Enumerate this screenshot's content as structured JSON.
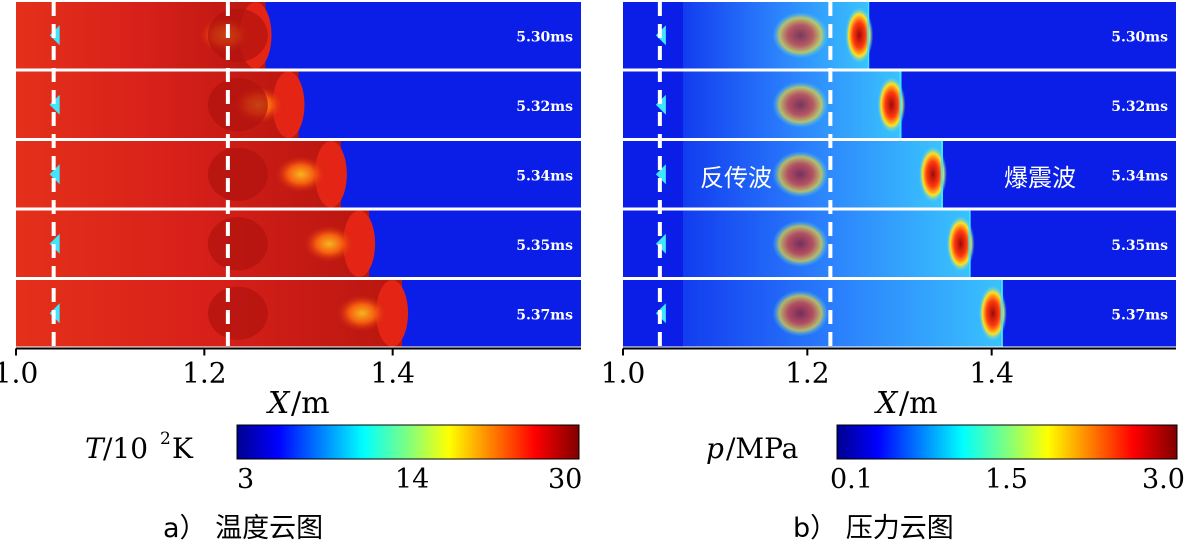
{
  "figure": {
    "colors": {
      "cold": "#0a1ee8",
      "hot_red": "#e42414",
      "dark_red": "#b0120e",
      "cyan": "#3fe6ff",
      "light_blue": "#44aaff",
      "separator": "#ffffff",
      "dash": "#ffffff",
      "text": "#000000"
    },
    "panel_a": {
      "caption": "a） 温度云图",
      "time_labels": [
        "5.30ms",
        "5.32ms",
        "5.34ms",
        "5.35ms",
        "5.37ms"
      ],
      "front_positions_m": [
        1.265,
        1.3,
        1.345,
        1.375,
        1.41
      ],
      "x_ticks": [
        "1.0",
        "1.2",
        "1.4"
      ],
      "x_axis_label": "X",
      "x_axis_unit": "/m",
      "colorbar": {
        "symbol": "T",
        "unit_prefix": "/10",
        "unit_exp": "2",
        "unit_suffix": " K",
        "ticks": [
          "3",
          "14",
          "30"
        ]
      }
    },
    "panel_b": {
      "caption": "b） 压力云图",
      "time_labels": [
        "5.30ms",
        "5.32ms",
        "5.34ms",
        "5.35ms",
        "5.37ms"
      ],
      "front_positions_m": [
        1.265,
        1.3,
        1.345,
        1.375,
        1.41
      ],
      "x_ticks": [
        "1.0",
        "1.2",
        "1.4"
      ],
      "x_axis_label": "X",
      "x_axis_unit": "/m",
      "annotation_left": "反传波",
      "annotation_right": "爆震波",
      "colorbar": {
        "symbol": "p",
        "unit": "/MPa",
        "ticks": [
          "0.1",
          "1.5",
          "3.0"
        ]
      }
    }
  }
}
